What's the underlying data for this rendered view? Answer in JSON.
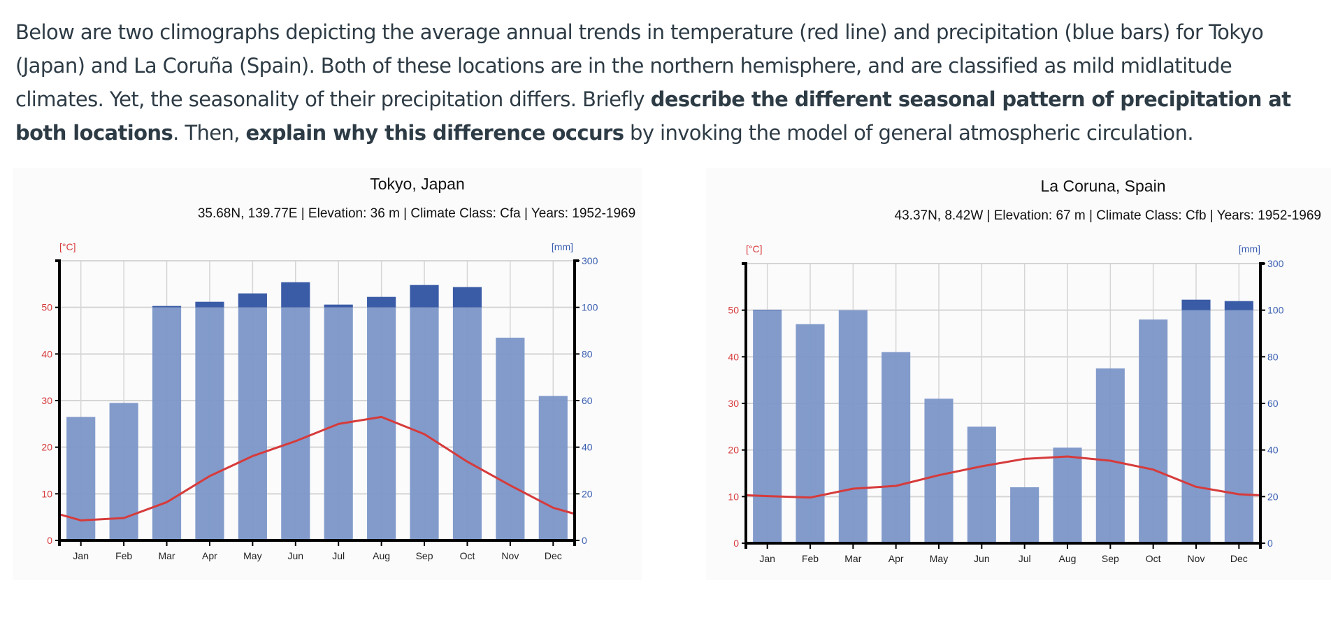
{
  "prompt": {
    "segments": [
      {
        "text": "Below are two climographs depicting the average annual trends in temperature (red line) and precipitation (blue bars) for Tokyo (Japan) and La Coruña (Spain). Both of these locations are in the northern hemisphere, and are classified as mild midlatitude climates. Yet, the seasonality of their precipitation differs. Briefly ",
        "bold": false
      },
      {
        "text": "describe the different seasonal pattern of precipitation at both locations",
        "bold": true
      },
      {
        "text": ". Then, ",
        "bold": false
      },
      {
        "text": "explain why this difference occurs",
        "bold": true
      },
      {
        "text": " by invoking the model of general atmospheric circulation.",
        "bold": false
      }
    ]
  },
  "colors": {
    "temperature": "#d63b3b",
    "precip_base": "#7b96c8",
    "precip_excess": "#3a5ba6",
    "precip_axis": "#3a5fb0",
    "grid": "#d5d5d5",
    "text": "#2d3b45"
  },
  "chart_data": [
    {
      "type": "bar+line",
      "title": "Tokyo, Japan",
      "subtitle": "35.68N, 139.77E | Elevation: 36 m | Climate Class: Cfa | Years: 1952-1969",
      "categories": [
        "Jan",
        "Feb",
        "Mar",
        "Apr",
        "May",
        "Jun",
        "Jul",
        "Aug",
        "Sep",
        "Oct",
        "Nov",
        "Dec"
      ],
      "series": [
        {
          "name": "Temperature",
          "unit": "[°C]",
          "axis": "left",
          "type": "line",
          "values": [
            4.3,
            4.8,
            8.2,
            13.8,
            18.1,
            21.3,
            25.0,
            26.5,
            22.8,
            16.9,
            11.8,
            7.0
          ],
          "edge_start": 5.6,
          "edge_end": 5.7
        },
        {
          "name": "Precipitation",
          "unit": "[mm]",
          "axis": "right",
          "type": "bar",
          "values": [
            53,
            59,
            106,
            124,
            160,
            208,
            112,
            145,
            196,
            187,
            87,
            62
          ]
        }
      ],
      "left_axis": {
        "label": "[°C]",
        "ticks": [
          0,
          10,
          20,
          30,
          40,
          50
        ],
        "range": [
          0,
          60
        ]
      },
      "right_axis": {
        "label": "[mm]",
        "ticks": [
          0,
          20,
          40,
          60,
          80,
          100,
          300
        ],
        "range": [
          0,
          300
        ],
        "break_at": 100,
        "note": "scale compressed 10x above 100 mm"
      }
    },
    {
      "type": "bar+line",
      "title": "La Coruna, Spain",
      "subtitle": "43.37N, 8.42W | Elevation: 67 m | Climate Class: Cfb | Years: 1952-1969",
      "categories": [
        "Jan",
        "Feb",
        "Mar",
        "Apr",
        "May",
        "Jun",
        "Jul",
        "Aug",
        "Sep",
        "Oct",
        "Nov",
        "Dec"
      ],
      "series": [
        {
          "name": "Temperature",
          "unit": "[°C]",
          "axis": "left",
          "type": "line",
          "values": [
            10.1,
            9.8,
            11.7,
            12.3,
            14.6,
            16.5,
            18.1,
            18.6,
            17.7,
            15.8,
            12.1,
            10.5
          ],
          "edge_start": 10.3,
          "edge_end": 10.3
        },
        {
          "name": "Precipitation",
          "unit": "[mm]",
          "axis": "right",
          "type": "bar",
          "values": [
            102,
            94,
            100,
            82,
            62,
            50,
            24,
            41,
            75,
            96,
            145,
            139
          ]
        }
      ],
      "left_axis": {
        "label": "[°C]",
        "ticks": [
          0,
          10,
          20,
          30,
          40,
          50
        ],
        "range": [
          0,
          60
        ]
      },
      "right_axis": {
        "label": "[mm]",
        "ticks": [
          0,
          20,
          40,
          60,
          80,
          100,
          300
        ],
        "range": [
          0,
          300
        ],
        "break_at": 100,
        "note": "scale compressed 10x above 100 mm"
      }
    }
  ]
}
